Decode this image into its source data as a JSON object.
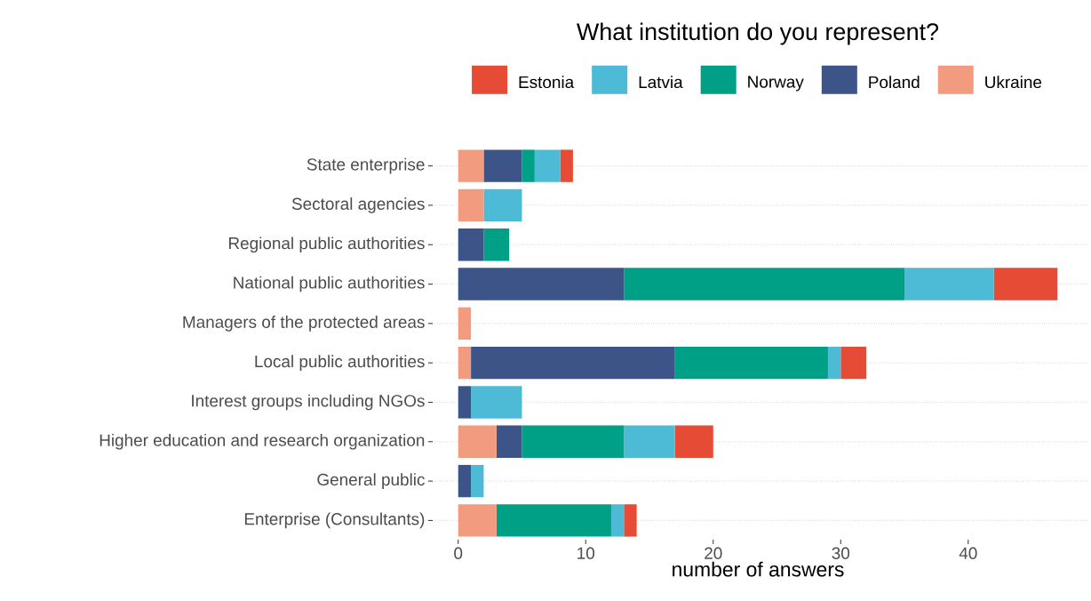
{
  "chart_data": {
    "type": "bar",
    "orientation": "horizontal",
    "stacked": true,
    "title": "What institution do you represent?",
    "xlabel": "number of answers",
    "categories": [
      "State enterprise",
      "Sectoral agencies",
      "Regional public authorities",
      "National public authorities",
      "Managers of the protected areas",
      "Local public authorities",
      "Interest groups including NGOs",
      "Higher education and research organization",
      "General public",
      "Enterprise (Consultants)"
    ],
    "series": [
      {
        "name": "Ukraine",
        "color": "#f39b7f",
        "values": [
          2,
          2,
          0,
          0,
          1,
          1,
          0,
          3,
          0,
          3
        ]
      },
      {
        "name": "Poland",
        "color": "#3c5488",
        "values": [
          3,
          0,
          2,
          13,
          0,
          16,
          1,
          2,
          1,
          0
        ]
      },
      {
        "name": "Norway",
        "color": "#00a087",
        "values": [
          1,
          0,
          2,
          22,
          0,
          12,
          0,
          8,
          0,
          9
        ]
      },
      {
        "name": "Latvia",
        "color": "#4dbbd5",
        "values": [
          2,
          3,
          0,
          7,
          0,
          1,
          4,
          4,
          1,
          1
        ]
      },
      {
        "name": "Estonia",
        "color": "#e64b35",
        "values": [
          1,
          0,
          0,
          5,
          0,
          2,
          0,
          3,
          0,
          1
        ]
      }
    ],
    "xlim": [
      -2.35,
      49.35
    ],
    "xticks": [
      0,
      10,
      20,
      30,
      40
    ],
    "grid": "y",
    "legend": "top"
  }
}
